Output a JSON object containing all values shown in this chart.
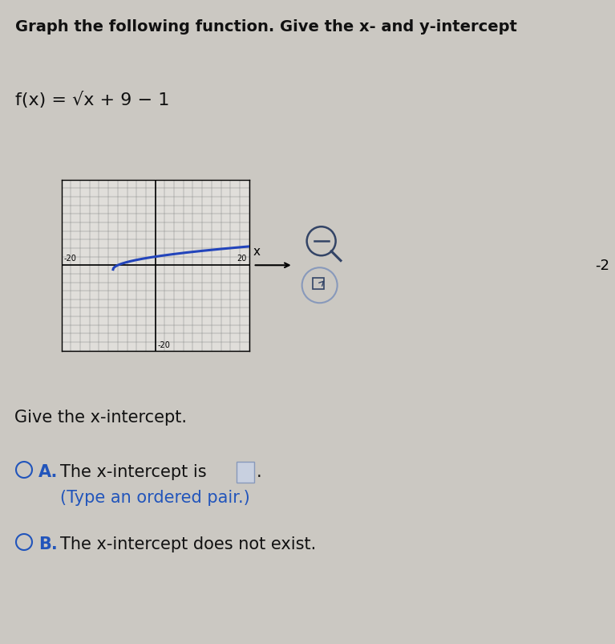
{
  "title": "Graph the following function. Give the x- and y-intercept",
  "function_label": "f(x) = √x + 9 − 1",
  "background_color": "#cbc8c2",
  "graph_xlim": [
    -20,
    20
  ],
  "graph_ylim": [
    -20,
    20
  ],
  "graph_bg": "#e0deda",
  "grid_color": "#888888",
  "curve_color": "#2244bb",
  "curve_linewidth": 2.2,
  "x_intercept_label": "Give the x-intercept.",
  "option_A_main": "The x-intercept is",
  "option_A_sub": "(Type an ordered pair.)",
  "option_B": "The x-intercept does not exist.",
  "text_color": "#111111",
  "blue_color": "#2255bb",
  "label_fontsize": 15,
  "title_fontsize": 14,
  "func_fontsize": 16,
  "divider_color": "#aaaaaa"
}
